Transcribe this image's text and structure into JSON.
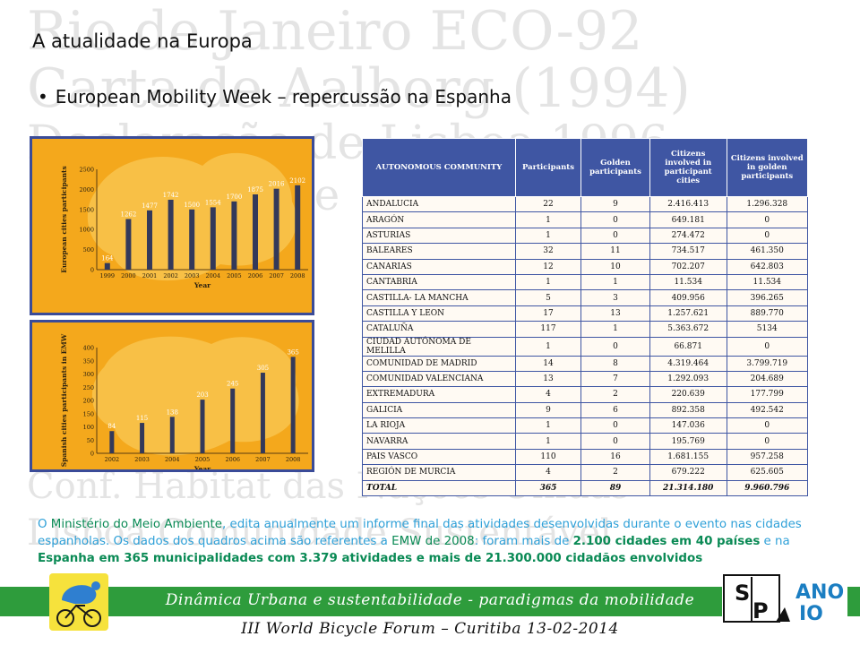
{
  "slide": {
    "title": "A atualidade na Europa",
    "bullet": "European Mobility Week – repercussão na Espanha"
  },
  "watermark": {
    "lines": [
      "Rio de Janeiro ECO-92",
      "Carta de Aalborg (1994)",
      "Declaração de Lisboa 1996",
      "de",
      "Conf. Habitat das Nações Unidas",
      "Lisboa Comunidade Sustentável"
    ]
  },
  "chart_data": [
    {
      "type": "bar",
      "title": "",
      "xlabel": "Year",
      "ylabel": "European cities participants",
      "categories": [
        "1999",
        "2000",
        "2001",
        "2002",
        "2003",
        "2004",
        "2005",
        "2006",
        "2007",
        "2008"
      ],
      "values": [
        164,
        1262,
        1477,
        1742,
        1500,
        1554,
        1700,
        1875,
        2016,
        2102
      ],
      "ylim": [
        0,
        2500
      ],
      "yticks": [
        0,
        500,
        1000,
        1500,
        2000,
        2500
      ],
      "colors": {
        "background": "#f4a81c",
        "bar": "#33395a",
        "labels": "#ffffff",
        "border": "#3a4b98"
      }
    },
    {
      "type": "bar",
      "title": "",
      "xlabel": "Year",
      "ylabel": "Spanish cities participants in EMW",
      "categories": [
        "2002",
        "2003",
        "2004",
        "2005",
        "2006",
        "2007",
        "2008"
      ],
      "values": [
        84,
        115,
        138,
        203,
        245,
        305,
        365
      ],
      "ylim": [
        0,
        400
      ],
      "yticks": [
        0,
        50,
        100,
        150,
        200,
        250,
        300,
        350,
        400
      ],
      "colors": {
        "background": "#f4a81c",
        "bar": "#33395a",
        "labels": "#ffffff",
        "border": "#3a4b98"
      }
    }
  ],
  "table": {
    "headers": [
      "AUTONOMOUS COMMUNITY",
      "Participants",
      "Golden participants",
      "Citizens involved in participant cities",
      "Citizens involved in golden participants"
    ],
    "rows": [
      [
        "ANDALUCIA",
        "22",
        "9",
        "2.416.413",
        "1.296.328"
      ],
      [
        "ARAGÓN",
        "1",
        "0",
        "649.181",
        "0"
      ],
      [
        "ASTURIAS",
        "1",
        "0",
        "274.472",
        "0"
      ],
      [
        "BALEARES",
        "32",
        "11",
        "734.517",
        "461.350"
      ],
      [
        "CANARIAS",
        "12",
        "10",
        "702.207",
        "642.803"
      ],
      [
        "CANTABRIA",
        "1",
        "1",
        "11.534",
        "11.534"
      ],
      [
        "CASTILLA- LA MANCHA",
        "5",
        "3",
        "409.956",
        "396.265"
      ],
      [
        "CASTILLA Y LEON",
        "17",
        "13",
        "1.257.621",
        "889.770"
      ],
      [
        "CATALUÑA",
        "117",
        "1",
        "5.363.672",
        "5134"
      ],
      [
        "CIUDAD AUTÓNOMA DE MELILLA",
        "1",
        "0",
        "66.871",
        "0"
      ],
      [
        "COMUNIDAD DE MADRID",
        "14",
        "8",
        "4.319.464",
        "3.799.719"
      ],
      [
        "COMUNIDAD VALENCIANA",
        "13",
        "7",
        "1.292.093",
        "204.689"
      ],
      [
        "EXTREMADURA",
        "4",
        "2",
        "220.639",
        "177.799"
      ],
      [
        "GALICIA",
        "9",
        "6",
        "892.358",
        "492.542"
      ],
      [
        "LA RIOJA",
        "1",
        "0",
        "147.036",
        "0"
      ],
      [
        "NAVARRA",
        "1",
        "0",
        "195.769",
        "0"
      ],
      [
        "PAIS VASCO",
        "110",
        "16",
        "1.681.155",
        "957.258"
      ],
      [
        "REGIÓN DE MURCIA",
        "4",
        "2",
        "679.222",
        "625.605"
      ]
    ],
    "total": [
      "TOTAL",
      "365",
      "89",
      "21.314.180",
      "9.960.796"
    ],
    "colors": {
      "header_bg": "#3f56a3",
      "header_text": "#ffffff",
      "border": "#3f56a3"
    }
  },
  "summary": {
    "p1": "O ",
    "ministerio": "Ministério do Meio Ambiente",
    "p2": ", edita anualmente um informe final das atividades desenvolvidas durante o evento nas cidades espanholas. Os dados dos quadros acima são referentes a ",
    "emw": "EMW de 2008",
    "p3": ": foram mais de ",
    "cidades": "2.100 cidades em 40 países",
    "p4": " e na ",
    "espanha": "Espanha em 365 municipalidades com 3.379 atividades e mais de 21.300.000 cidadãos envolvidos",
    "colors": {
      "text": "#2ea0d8",
      "highlight": "#0a8a55"
    }
  },
  "footer": {
    "line1": "Dinâmica Urbana e sustentabilidade - paradigmas da mobilidade",
    "line2": "III World Bicycle Forum – Curitiba 13-02-2014",
    "logo_right_text": "ANO",
    "logo_right_num": "IO",
    "logo_right_letters": [
      "S",
      "P"
    ],
    "colors": {
      "bar": "#2e9c3c",
      "line1": "#ffffff",
      "line2": "#111111"
    }
  },
  "icons": {
    "bullet": "bullet-dot-icon",
    "logo_left": "cyclist-logo-icon",
    "logo_right": "sp-ano10-logo-icon"
  }
}
